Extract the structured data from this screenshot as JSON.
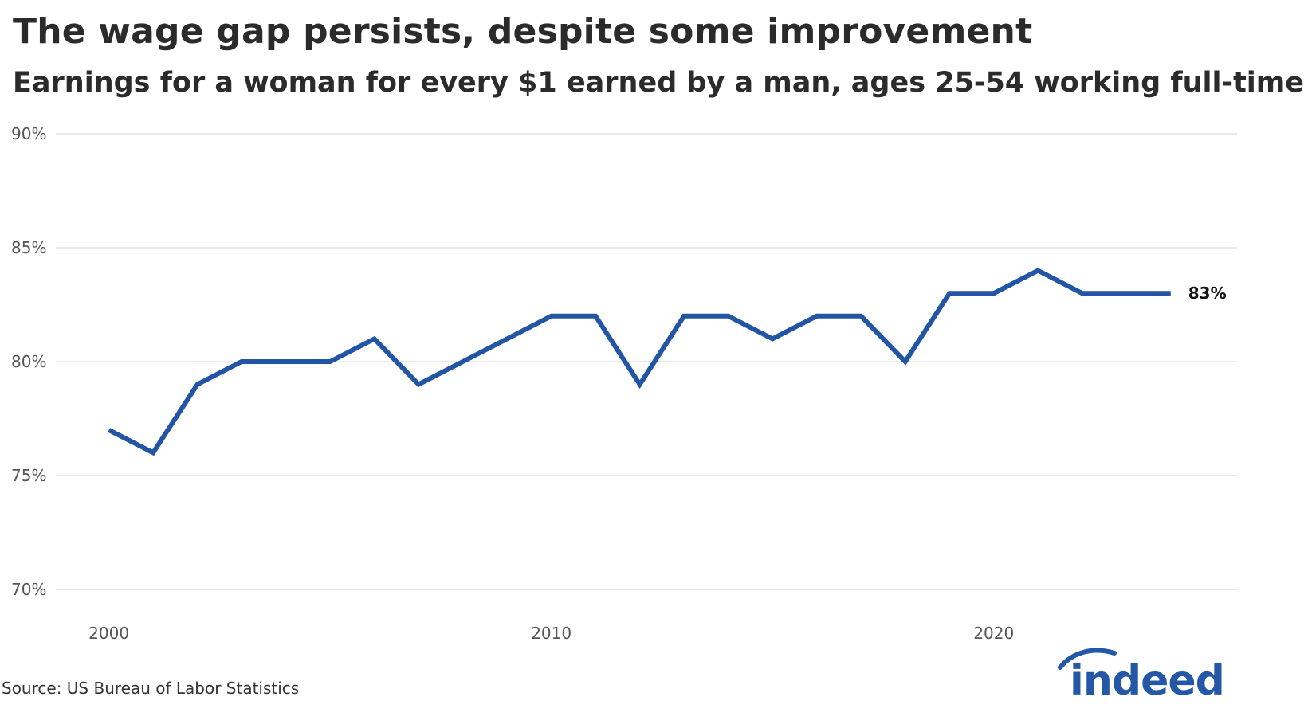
{
  "header": {
    "title": "The wage gap persists, despite some improvement",
    "subtitle": "Earnings for a woman for every $1 earned by a man, ages 25-54 working full-time"
  },
  "footer": {
    "source": "Source: US Bureau of Labor Statistics",
    "logo_text": "indeed"
  },
  "colors": {
    "line": "#2355A5",
    "grid": "#dddddd",
    "logo": "#2557A7"
  },
  "chart_data": {
    "type": "line",
    "title": "The wage gap persists, despite some improvement",
    "subtitle": "Earnings for a woman for every $1 earned by a man, ages 25-54 working full-time",
    "xlabel": "",
    "ylabel": "",
    "x": [
      2000,
      2001,
      2002,
      2003,
      2004,
      2005,
      2006,
      2007,
      2008,
      2009,
      2010,
      2011,
      2012,
      2013,
      2014,
      2015,
      2016,
      2017,
      2018,
      2019,
      2020,
      2021,
      2022,
      2023,
      2024
    ],
    "series": [
      {
        "values": [
          77,
          76,
          79,
          80,
          80,
          80,
          81,
          79,
          80,
          81,
          82,
          82,
          79,
          82,
          82,
          81,
          82,
          82,
          80,
          83,
          83,
          84,
          83,
          83,
          83
        ]
      }
    ],
    "xticks": [
      2000,
      2010,
      2020
    ],
    "yticks": [
      70,
      75,
      80,
      85,
      90
    ],
    "ytick_labels": [
      "70%",
      "75%",
      "80%",
      "85%",
      "90%"
    ],
    "ylim": [
      70,
      90
    ],
    "xlim": [
      1998.8,
      2025.5
    ],
    "end_label": "83%",
    "grid": true,
    "legend": "none"
  }
}
